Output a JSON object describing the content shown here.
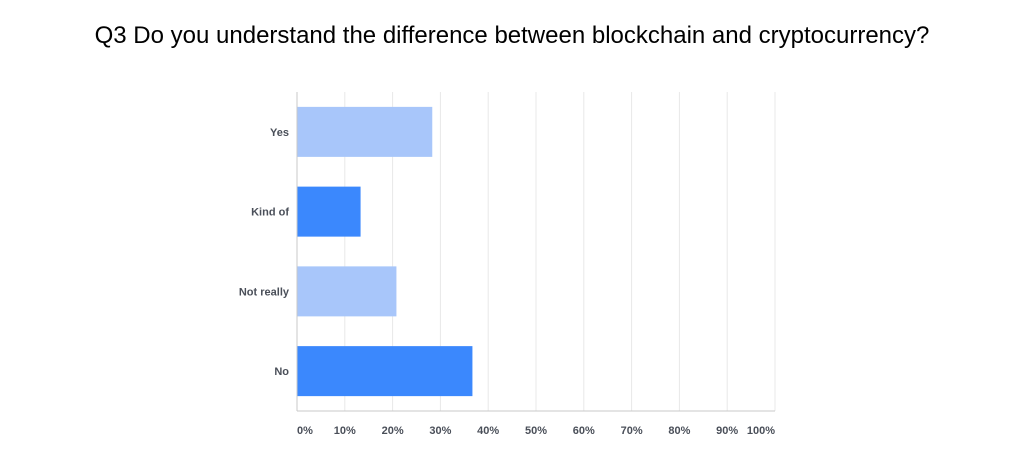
{
  "chart_data": {
    "type": "bar",
    "orientation": "horizontal",
    "title": "Q3 Do you understand the difference between blockchain and cryptocurrency?",
    "categories": [
      "Yes",
      "Kind of",
      "Not really",
      "No"
    ],
    "values": [
      28.3,
      13.3,
      20.8,
      36.7
    ],
    "xlim": [
      0,
      100
    ],
    "x_ticks": [
      "0%",
      "10%",
      "20%",
      "30%",
      "40%",
      "50%",
      "60%",
      "70%",
      "80%",
      "90%",
      "100%"
    ],
    "grid": true,
    "bar_colors": [
      "#a8c6fa",
      "#3b88fd",
      "#a8c6fa",
      "#3b88fd"
    ],
    "grid_color": "#e8e8e8",
    "axis_color": "#c8c8c8"
  }
}
